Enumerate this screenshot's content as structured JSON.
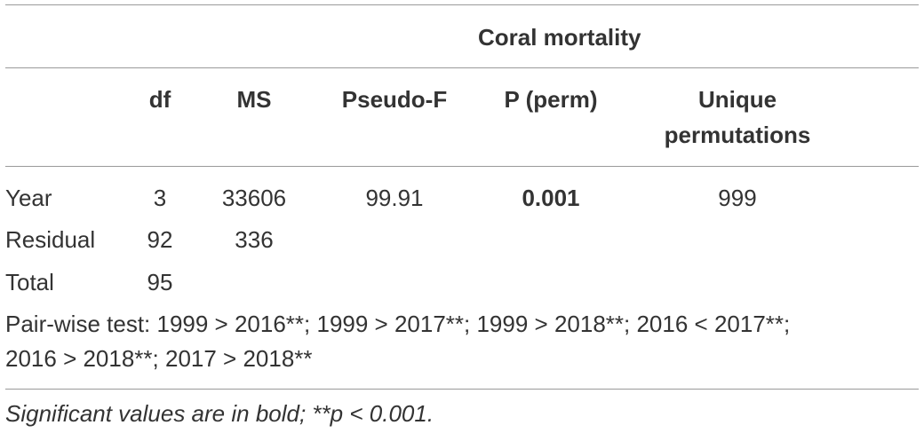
{
  "table": {
    "group_header": "Coral mortality",
    "columns": {
      "df": "df",
      "ms": "MS",
      "pseudo_f": "Pseudo-F",
      "p_perm": "P (perm)",
      "unique_line1": "Unique",
      "unique_line2": "permutations"
    },
    "rows": [
      {
        "source": "Year",
        "df": "3",
        "ms": "33606",
        "pseudo_f": "99.91",
        "p_perm": "0.001",
        "unique": "999"
      },
      {
        "source": "Residual",
        "df": "92",
        "ms": "336"
      },
      {
        "source": "Total",
        "df": "95"
      }
    ],
    "pairwise_line1": "Pair-wise test: 1999 > 2016**; 1999 > 2017**; 1999 > 2018**; 2016 < 2017**;",
    "pairwise_line2": "2016 > 2018**; 2017 > 2018**",
    "footnote": "Significant values are in bold; **p < 0.001."
  }
}
